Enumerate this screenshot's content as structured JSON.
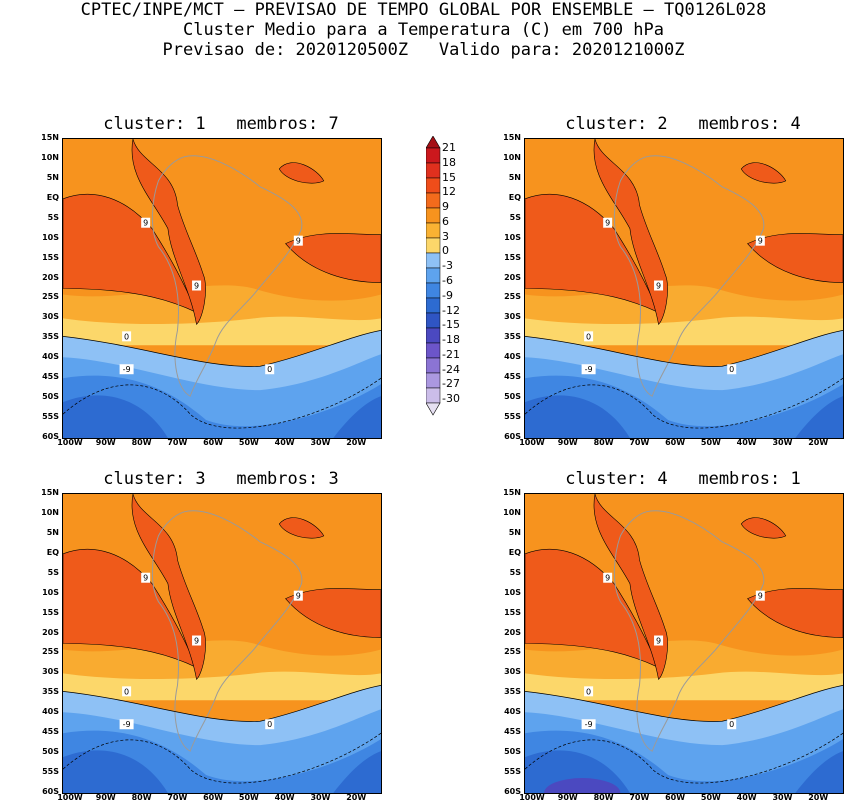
{
  "header": {
    "line1": "CPTEC/INPE/MCT – PREVISAO DE TEMPO GLOBAL POR ENSEMBLE – TQ0126L028",
    "line2": "Cluster Medio para a Temperatura (C) em 700 hPa",
    "line3": "Previsao de: 2020120500Z   Valido para: 2020121000Z"
  },
  "panels": [
    {
      "title": "cluster: 1   membros: 7"
    },
    {
      "title": "cluster: 2   membros: 4"
    },
    {
      "title": "cluster: 3   membros: 3"
    },
    {
      "title": "cluster: 4   membros: 1"
    }
  ],
  "axes": {
    "lat_labels": [
      "15N",
      "10N",
      "5N",
      "EQ",
      "5S",
      "10S",
      "15S",
      "20S",
      "25S",
      "30S",
      "35S",
      "40S",
      "45S",
      "50S",
      "55S",
      "60S"
    ],
    "lon_labels": [
      "100W",
      "90W",
      "80W",
      "70W",
      "60W",
      "50W",
      "40W",
      "30W",
      "20W"
    ]
  },
  "colorbar": {
    "labels": [
      "21",
      "18",
      "15",
      "12",
      "9",
      "6",
      "3",
      "0",
      "-3",
      "-6",
      "-9",
      "-12",
      "-15",
      "-18",
      "-21",
      "-24",
      "-27",
      "-30"
    ],
    "colors": [
      "#a50f15",
      "#cb181d",
      "#e0301e",
      "#ef4d1a",
      "#f36b1c",
      "#f7931e",
      "#f9b233",
      "#fcd76a",
      "#8ec1f5",
      "#5ea3ee",
      "#3f86e2",
      "#2d6bd1",
      "#2f55c4",
      "#4b49c0",
      "#6c55c9",
      "#8b74d4",
      "#ab98e0",
      "#cbbde9",
      "#e6e0f2"
    ]
  },
  "contour_labels": {
    "warm": "9",
    "zero": "0",
    "cold": "-9"
  }
}
